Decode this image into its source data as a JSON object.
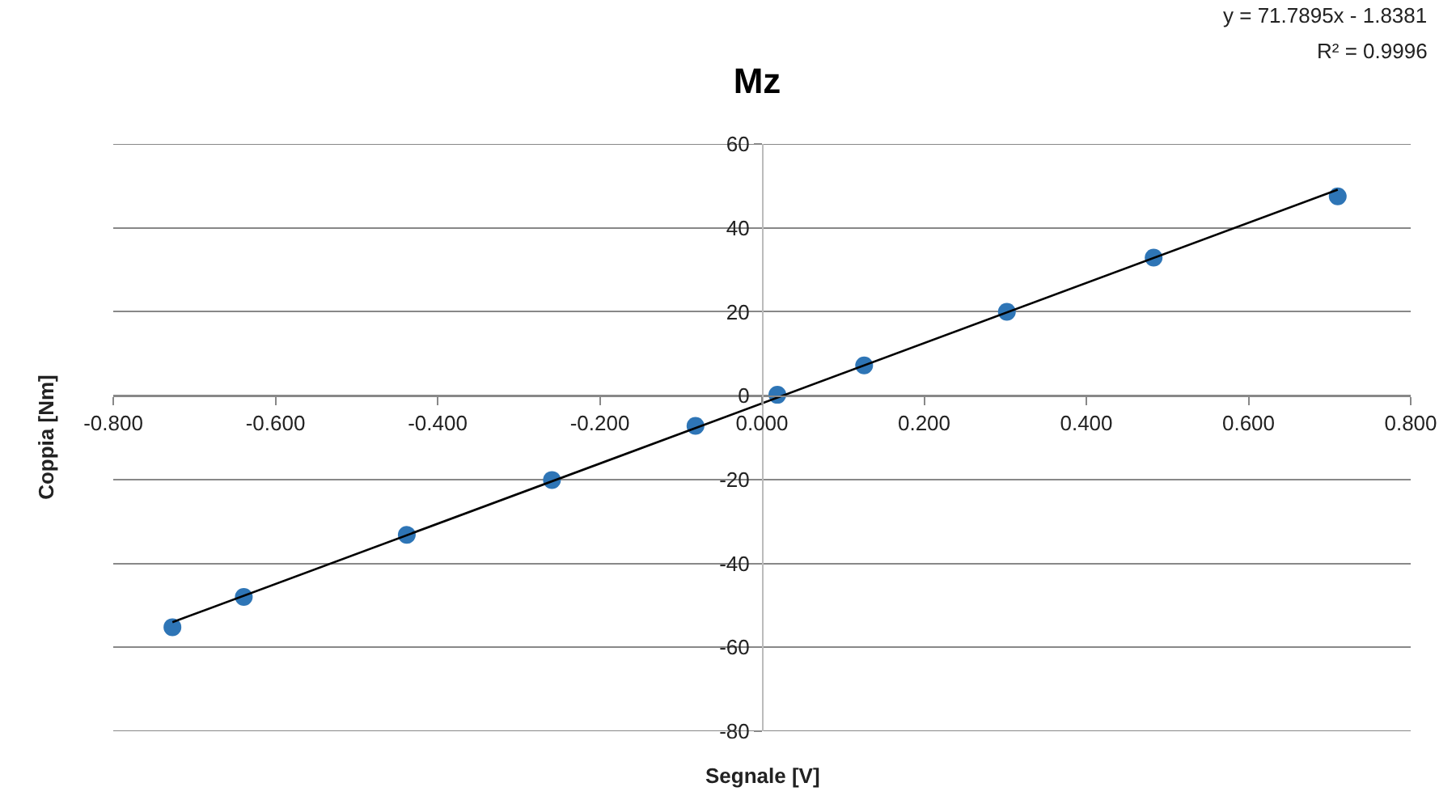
{
  "chart_data": {
    "type": "scatter",
    "title": "Mz",
    "xlabel": "Segnale [V]",
    "ylabel": "Coppia [Nm]",
    "series": [
      {
        "color": "#2e75b6",
        "x": [
          -0.727,
          -0.639,
          -0.438,
          -0.259,
          -0.082,
          0.019,
          0.126,
          0.302,
          0.483,
          0.71
        ],
        "values": [
          -55.2,
          -48.0,
          -33.2,
          -20.1,
          -7.2,
          0.2,
          7.2,
          20.0,
          32.9,
          47.5
        ]
      },
      {
        "type": "line",
        "color": "#000000",
        "x": [
          -0.727,
          0.71
        ],
        "values": [
          -54.0,
          49.1
        ],
        "marker": "none"
      }
    ],
    "annotations": [
      "y = 71.7895x - 1.8381",
      "R² = 0.9996"
    ],
    "xlim": [
      -0.8,
      0.8
    ],
    "xticks": [
      {
        "value": -0.8,
        "label": "-0.800"
      },
      {
        "value": -0.6,
        "label": "-0.600"
      },
      {
        "value": -0.4,
        "label": "-0.400"
      },
      {
        "value": -0.2,
        "label": "-0.200"
      },
      {
        "value": 0,
        "label": "0.000"
      },
      {
        "value": 0.2,
        "label": "0.200"
      },
      {
        "value": 0.4,
        "label": "0.400"
      },
      {
        "value": 0.6,
        "label": "0.600"
      },
      {
        "value": 0.8,
        "label": "0.800"
      }
    ],
    "ylim": [
      -80,
      60
    ],
    "yticks": [
      -80,
      -60,
      -40,
      -20,
      0,
      20,
      40,
      60
    ],
    "grid": "y",
    "marker": "circle",
    "line_style": "solid"
  }
}
